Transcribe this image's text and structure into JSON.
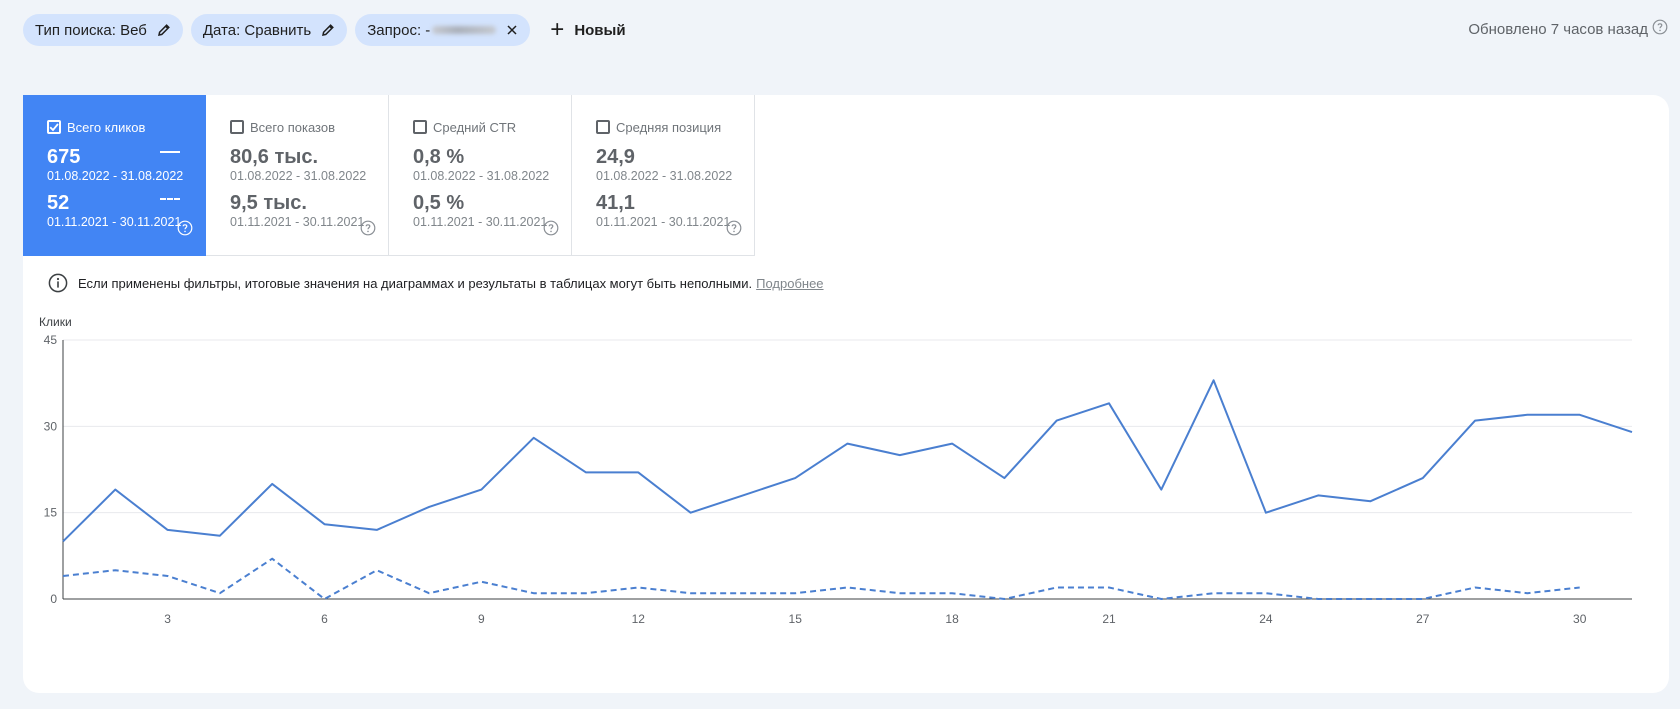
{
  "filters": {
    "chips": [
      {
        "label": "Тип поиска: Веб",
        "icon": "pencil-icon"
      },
      {
        "label": "Дата: Сравнить",
        "icon": "pencil-icon"
      },
      {
        "label": "Запрос: -",
        "icon": "close-icon"
      }
    ],
    "new_label": "Новый",
    "updated_text": "Обновлено 7 часов назад"
  },
  "metrics": [
    {
      "label": "Всего кликов",
      "checked": true,
      "value1": "675",
      "range1": "01.08.2022 - 31.08.2022",
      "value2": "52",
      "range2": "01.11.2021 - 30.11.2021"
    },
    {
      "label": "Всего показов",
      "checked": false,
      "value1": "80,6 тыс.",
      "range1": "01.08.2022 - 31.08.2022",
      "value2": "9,5 тыс.",
      "range2": "01.11.2021 - 30.11.2021"
    },
    {
      "label": "Средний CTR",
      "checked": false,
      "value1": "0,8 %",
      "range1": "01.08.2022 - 31.08.2022",
      "value2": "0,5 %",
      "range2": "01.11.2021 - 30.11.2021"
    },
    {
      "label": "Средняя позиция",
      "checked": false,
      "value1": "24,9",
      "range1": "01.08.2022 - 31.08.2022",
      "value2": "41,1",
      "range2": "01.11.2021 - 30.11.2021"
    }
  ],
  "info": {
    "text": "Если применены фильтры, итоговые значения на диаграммах и результаты в таблицах могут быть неполными.",
    "link": "Подробнее"
  },
  "colors": {
    "accent": "#4285f4",
    "line": "#4a7fd0",
    "chip": "#d3e3fd"
  },
  "chart_data": {
    "type": "line",
    "ylabel": "Клики",
    "ylim": [
      0,
      45
    ],
    "yticks": [
      0,
      15,
      30,
      45
    ],
    "xlim": [
      1,
      31
    ],
    "xticks": [
      3,
      6,
      9,
      12,
      15,
      18,
      21,
      24,
      27,
      30
    ],
    "grid": true,
    "series": [
      {
        "style": "solid",
        "x": [
          1,
          2,
          3,
          4,
          5,
          6,
          7,
          8,
          9,
          10,
          11,
          12,
          13,
          14,
          15,
          16,
          17,
          18,
          19,
          20,
          21,
          22,
          23,
          24,
          25,
          26,
          27,
          28,
          29,
          30,
          31
        ],
        "values": [
          10,
          19,
          12,
          11,
          20,
          13,
          12,
          16,
          19,
          28,
          22,
          22,
          15,
          18,
          21,
          27,
          25,
          27,
          21,
          31,
          34,
          19,
          38,
          15,
          18,
          17,
          21,
          31,
          32,
          32,
          29
        ]
      },
      {
        "style": "dashed",
        "x": [
          1,
          2,
          3,
          4,
          5,
          6,
          7,
          8,
          9,
          10,
          11,
          12,
          13,
          14,
          15,
          16,
          17,
          18,
          19,
          20,
          21,
          22,
          23,
          24,
          25,
          26,
          27,
          28,
          29,
          30
        ],
        "values": [
          4,
          5,
          4,
          1,
          7,
          0,
          5,
          1,
          3,
          1,
          1,
          2,
          1,
          1,
          1,
          2,
          1,
          1,
          0,
          2,
          2,
          0,
          1,
          1,
          0,
          0,
          0,
          2,
          1,
          2
        ]
      }
    ]
  }
}
